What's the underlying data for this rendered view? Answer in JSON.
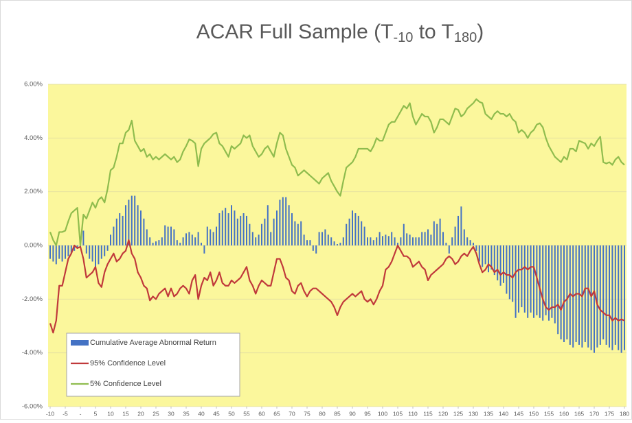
{
  "chart_data": {
    "type": "bar",
    "title": [
      {
        "text": "ACAR Full Sample (T",
        "sub": false
      },
      {
        "text": "-10",
        "sub": true
      },
      {
        "text": " to T",
        "sub": false
      },
      {
        "text": "180",
        "sub": true
      },
      {
        "text": ")",
        "sub": false
      }
    ],
    "x": [
      -10,
      -9,
      -8,
      -7,
      -6,
      -5,
      -4,
      -3,
      -2,
      -1,
      0,
      1,
      2,
      3,
      4,
      5,
      6,
      7,
      8,
      9,
      10,
      11,
      12,
      13,
      14,
      15,
      16,
      17,
      18,
      19,
      20,
      21,
      22,
      23,
      24,
      25,
      26,
      27,
      28,
      29,
      30,
      31,
      32,
      33,
      34,
      35,
      36,
      37,
      38,
      39,
      40,
      41,
      42,
      43,
      44,
      45,
      46,
      47,
      48,
      49,
      50,
      51,
      52,
      53,
      54,
      55,
      56,
      57,
      58,
      59,
      60,
      61,
      62,
      63,
      64,
      65,
      66,
      67,
      68,
      69,
      70,
      71,
      72,
      73,
      74,
      75,
      76,
      77,
      78,
      79,
      80,
      81,
      82,
      83,
      84,
      85,
      86,
      87,
      88,
      89,
      90,
      91,
      92,
      93,
      94,
      95,
      96,
      97,
      98,
      99,
      100,
      101,
      102,
      103,
      104,
      105,
      106,
      107,
      108,
      109,
      110,
      111,
      112,
      113,
      114,
      115,
      116,
      117,
      118,
      119,
      120,
      121,
      122,
      123,
      124,
      125,
      126,
      127,
      128,
      129,
      130,
      131,
      132,
      133,
      134,
      135,
      136,
      137,
      138,
      139,
      140,
      141,
      142,
      143,
      144,
      145,
      146,
      147,
      148,
      149,
      150,
      151,
      152,
      153,
      154,
      155,
      156,
      157,
      158,
      159,
      160,
      161,
      162,
      163,
      164,
      165,
      166,
      167,
      168,
      169,
      170,
      171,
      172,
      173,
      174,
      175,
      176,
      177,
      178,
      179,
      180
    ],
    "xlim": [
      -10,
      180
    ],
    "xticks": [
      -10,
      -5,
      {
        "value": 0,
        "label": "-"
      },
      5,
      10,
      15,
      20,
      25,
      30,
      35,
      40,
      45,
      50,
      55,
      60,
      65,
      70,
      75,
      80,
      85,
      90,
      95,
      100,
      105,
      110,
      115,
      120,
      125,
      130,
      135,
      140,
      145,
      150,
      155,
      160,
      165,
      170,
      175,
      180
    ],
    "ylim": [
      -6,
      6
    ],
    "yticks": [
      {
        "value": -6,
        "label": "-6.00%"
      },
      {
        "value": -4,
        "label": "-4.00%"
      },
      {
        "value": -2,
        "label": "-2.00%"
      },
      {
        "value": 0,
        "label": "0.00%"
      },
      {
        "value": 2,
        "label": "2.00%"
      },
      {
        "value": 4,
        "label": "4.00%"
      },
      {
        "value": 6,
        "label": "6.00%"
      }
    ],
    "grid": true,
    "legend": "lower left",
    "series": [
      {
        "name": "Cumulative Average Abnormal Return",
        "type": "bar",
        "color": "#4472c4",
        "values": [
          -0.5,
          -0.6,
          -0.7,
          -0.5,
          -0.6,
          -0.5,
          -0.4,
          -0.3,
          -0.2,
          -0.1,
          -0.05,
          0.55,
          -0.3,
          -0.5,
          -0.6,
          -0.8,
          -0.7,
          -0.5,
          -0.4,
          -0.2,
          0.4,
          0.7,
          1.0,
          1.2,
          1.1,
          1.5,
          1.7,
          1.85,
          1.85,
          1.5,
          1.3,
          1.0,
          0.6,
          0.3,
          0.1,
          0.15,
          0.2,
          0.3,
          0.75,
          0.7,
          0.7,
          0.6,
          0.2,
          0.1,
          0.3,
          0.45,
          0.5,
          0.4,
          0.3,
          0.5,
          0.1,
          -0.3,
          0.7,
          0.6,
          0.5,
          0.7,
          1.2,
          1.3,
          1.4,
          1.2,
          1.5,
          1.3,
          1.0,
          1.1,
          1.2,
          1.1,
          0.8,
          0.5,
          0.3,
          0.4,
          0.8,
          1.0,
          1.5,
          0.5,
          1.0,
          1.3,
          1.7,
          1.8,
          1.8,
          1.5,
          1.2,
          0.9,
          0.8,
          0.9,
          0.4,
          0.2,
          0.2,
          -0.2,
          -0.3,
          0.5,
          0.5,
          0.6,
          0.4,
          0.3,
          0.15,
          0.05,
          0.1,
          0.3,
          0.8,
          1.0,
          1.3,
          1.2,
          1.1,
          0.9,
          0.7,
          0.3,
          0.3,
          0.2,
          0.3,
          0.5,
          0.35,
          0.4,
          0.35,
          0.5,
          0.3,
          0.1,
          0.3,
          0.8,
          0.45,
          0.4,
          0.3,
          0.3,
          0.3,
          0.5,
          0.5,
          0.6,
          0.4,
          0.9,
          0.8,
          1.0,
          0.5,
          0.1,
          -0.3,
          0.3,
          0.7,
          1.1,
          1.45,
          0.6,
          0.3,
          0.2,
          0.1,
          -0.2,
          -0.6,
          -0.8,
          -0.7,
          -1.0,
          -0.9,
          -1.1,
          -1.3,
          -1.5,
          -1.4,
          -1.8,
          -2.0,
          -2.1,
          -2.7,
          -2.5,
          -2.3,
          -2.5,
          -2.7,
          -2.5,
          -2.7,
          -2.6,
          -2.7,
          -2.8,
          -2.6,
          -2.8,
          -2.7,
          -2.9,
          -3.3,
          -3.5,
          -3.6,
          -3.5,
          -3.7,
          -3.8,
          -3.6,
          -3.7,
          -3.8,
          -3.6,
          -3.8,
          -3.9,
          -4.0,
          -3.8,
          -3.7,
          -3.5,
          -3.7,
          -3.8,
          -3.9,
          -3.7,
          -3.9,
          -4.0,
          -3.9
        ]
      },
      {
        "name": "95% Confidence Level",
        "type": "line",
        "color": "#c0393b",
        "values": [
          -2.9,
          -3.25,
          -2.8,
          -1.5,
          -1.5,
          -1.0,
          -0.5,
          -0.3,
          0.0,
          -0.1,
          -0.05,
          -0.5,
          -1.2,
          -1.1,
          -1.0,
          -0.8,
          -1.4,
          -1.55,
          -1.0,
          -0.7,
          -0.5,
          -0.3,
          -0.6,
          -0.5,
          -0.3,
          -0.2,
          0.2,
          -0.3,
          -0.5,
          -1.0,
          -1.2,
          -1.5,
          -1.6,
          -2.05,
          -1.9,
          -2.0,
          -1.8,
          -1.7,
          -1.6,
          -1.9,
          -1.6,
          -1.9,
          -1.8,
          -1.6,
          -1.5,
          -1.6,
          -1.8,
          -1.3,
          -1.1,
          -2.0,
          -1.5,
          -1.2,
          -1.3,
          -1.0,
          -1.5,
          -1.3,
          -1.0,
          -1.4,
          -1.5,
          -1.5,
          -1.3,
          -1.4,
          -1.3,
          -1.2,
          -1.0,
          -0.8,
          -1.3,
          -1.5,
          -1.8,
          -1.5,
          -1.3,
          -1.4,
          -1.5,
          -1.5,
          -1.0,
          -0.5,
          -0.5,
          -0.8,
          -1.2,
          -1.3,
          -1.7,
          -1.8,
          -1.5,
          -1.4,
          -1.7,
          -1.9,
          -1.7,
          -1.6,
          -1.6,
          -1.7,
          -1.8,
          -1.9,
          -2.0,
          -2.1,
          -2.3,
          -2.6,
          -2.3,
          -2.1,
          -2.0,
          -1.9,
          -1.8,
          -1.9,
          -1.8,
          -1.7,
          -2.0,
          -2.1,
          -2.0,
          -2.2,
          -2.0,
          -1.7,
          -1.5,
          -0.9,
          -0.8,
          -0.6,
          -0.3,
          0.0,
          -0.2,
          -0.4,
          -0.4,
          -0.5,
          -0.8,
          -0.7,
          -0.6,
          -0.8,
          -0.9,
          -1.3,
          -1.1,
          -1.0,
          -0.9,
          -0.8,
          -0.7,
          -0.5,
          -0.4,
          -0.5,
          -0.7,
          -0.6,
          -0.4,
          -0.3,
          -0.4,
          -0.2,
          -0.05,
          -0.3,
          -0.7,
          -1.0,
          -0.9,
          -0.7,
          -0.8,
          -1.0,
          -0.9,
          -1.1,
          -1.0,
          -1.1,
          -1.1,
          -1.2,
          -1.0,
          -0.9,
          -0.9,
          -0.8,
          -0.9,
          -0.8,
          -0.8,
          -1.2,
          -1.6,
          -2.0,
          -2.3,
          -2.4,
          -2.3,
          -2.3,
          -2.2,
          -2.4,
          -2.1,
          -2.0,
          -1.8,
          -1.9,
          -1.8,
          -1.8,
          -1.9,
          -1.6,
          -1.6,
          -1.9,
          -1.7,
          -2.2,
          -2.4,
          -2.5,
          -2.6,
          -2.6,
          -2.8,
          -2.7,
          -2.8,
          -2.75,
          -2.8
        ]
      },
      {
        "name": "5% Confidence Level",
        "type": "line",
        "color": "#8fbc4e",
        "values": [
          0.5,
          0.2,
          0.0,
          0.5,
          0.5,
          0.55,
          0.9,
          1.2,
          1.3,
          1.4,
          0.0,
          1.15,
          1.0,
          1.3,
          1.6,
          1.4,
          1.7,
          1.8,
          1.6,
          2.1,
          2.8,
          2.9,
          3.3,
          3.8,
          3.8,
          4.2,
          4.3,
          4.65,
          3.9,
          3.7,
          3.5,
          3.6,
          3.3,
          3.4,
          3.2,
          3.3,
          3.2,
          3.3,
          3.4,
          3.3,
          3.2,
          3.3,
          3.1,
          3.2,
          3.5,
          3.7,
          3.95,
          3.9,
          3.8,
          2.95,
          3.6,
          3.8,
          3.9,
          4.0,
          4.15,
          4.2,
          3.8,
          3.7,
          3.5,
          3.3,
          3.7,
          3.6,
          3.7,
          3.8,
          4.1,
          4.0,
          4.1,
          3.7,
          3.5,
          3.3,
          3.4,
          3.6,
          3.7,
          3.5,
          3.3,
          3.8,
          4.2,
          4.1,
          3.6,
          3.3,
          3.0,
          2.9,
          2.6,
          2.7,
          2.8,
          2.7,
          2.6,
          2.5,
          2.4,
          2.3,
          2.5,
          2.6,
          2.7,
          2.4,
          2.2,
          2.0,
          1.85,
          2.4,
          2.9,
          3.0,
          3.1,
          3.3,
          3.6,
          3.6,
          3.6,
          3.6,
          3.5,
          3.7,
          4.0,
          3.9,
          3.9,
          4.2,
          4.5,
          4.6,
          4.6,
          4.8,
          5.0,
          5.2,
          5.1,
          5.3,
          4.8,
          4.5,
          4.7,
          4.9,
          4.8,
          4.8,
          4.6,
          4.2,
          4.4,
          4.7,
          4.7,
          4.6,
          4.5,
          4.8,
          5.1,
          5.05,
          4.8,
          4.9,
          5.1,
          5.2,
          5.3,
          5.45,
          5.35,
          5.3,
          4.9,
          4.8,
          4.7,
          4.9,
          5.0,
          4.9,
          4.9,
          4.8,
          4.9,
          4.7,
          4.6,
          4.2,
          4.3,
          4.2,
          4.0,
          4.2,
          4.3,
          4.5,
          4.55,
          4.4,
          4.0,
          3.7,
          3.5,
          3.3,
          3.2,
          3.1,
          3.3,
          3.2,
          3.6,
          3.6,
          3.5,
          3.9,
          3.85,
          3.8,
          3.6,
          3.8,
          3.7,
          3.9,
          4.05,
          3.1,
          3.05,
          3.1,
          3.0,
          3.2,
          3.3,
          3.1,
          3.0
        ]
      }
    ]
  }
}
